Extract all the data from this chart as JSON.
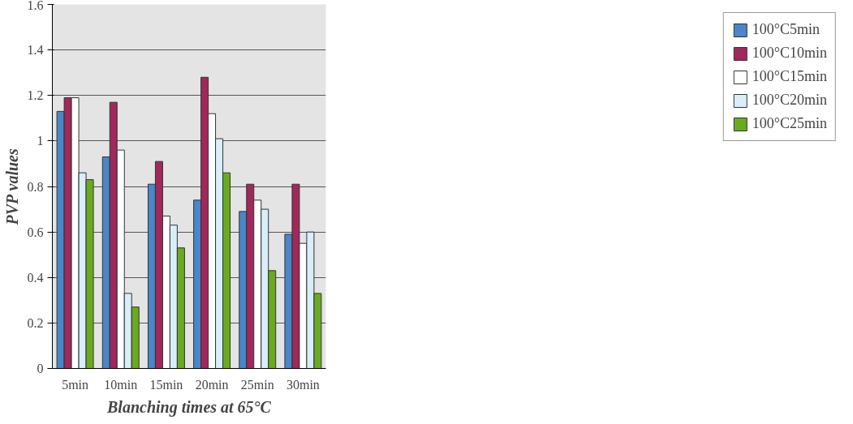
{
  "chart_data": {
    "type": "bar",
    "xlabel": "Blanching times at 65°C",
    "ylabel": "PVP values",
    "categories": [
      "5min",
      "10min",
      "15min",
      "20min",
      "25min",
      "30min"
    ],
    "series": [
      {
        "name": "100°C5min",
        "color": "#4a86c8",
        "values": [
          1.13,
          0.93,
          0.81,
          0.74,
          0.69,
          0.59
        ]
      },
      {
        "name": "100°C10min",
        "color": "#a0285a",
        "values": [
          1.19,
          1.17,
          0.91,
          1.28,
          0.81,
          0.81
        ]
      },
      {
        "name": "100°C15min",
        "color": "#ffffff",
        "values": [
          1.19,
          0.96,
          0.67,
          1.12,
          0.74,
          0.55
        ]
      },
      {
        "name": "100°C20min",
        "color": "#d8eef8",
        "values": [
          0.86,
          0.33,
          0.63,
          1.01,
          0.7,
          0.6
        ]
      },
      {
        "name": "100°C25min",
        "color": "#6aaa20",
        "values": [
          0.83,
          0.27,
          0.53,
          0.86,
          0.43,
          0.33
        ]
      }
    ],
    "ylim": [
      0,
      1.6
    ],
    "yticks": [
      0,
      0.2,
      0.4,
      0.6,
      0.8,
      1,
      1.2,
      1.4,
      1.6
    ],
    "grid": "y",
    "legend": "right"
  }
}
